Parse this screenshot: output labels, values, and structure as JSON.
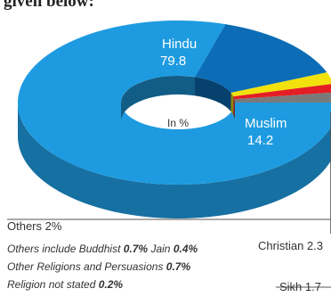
{
  "header_fragment": "given below:",
  "chart_data": {
    "type": "pie",
    "center_label": "In %",
    "slices": [
      {
        "label": "Hindu",
        "value": 79.8,
        "color": "#1E9BE0"
      },
      {
        "label": "Muslim",
        "value": 14.2,
        "color": "#0C6CB6"
      },
      {
        "label": "Christian",
        "value": 2.3,
        "color": "#F2E10C"
      },
      {
        "label": "Sikh",
        "value": 1.7,
        "color": "#E31E24"
      },
      {
        "label": "Others",
        "value": 2,
        "color": "#7A7A7A"
      }
    ],
    "labels": {
      "hindu_name": "Hindu",
      "hindu_value": "79.8",
      "muslim_name": "Muslim",
      "muslim_value": "14.2",
      "christian": "Christian 2.3",
      "sikh": "Sikh 1.7",
      "others": "Others 2%"
    },
    "notes": {
      "line1_prefix": "Others include Buddhist",
      "buddhist_value": "0.7%",
      "jain_label": "Jain",
      "jain_value": "0.4%",
      "line2_prefix": "Other Religions and Persuasions",
      "line2_value": "0.7%",
      "line3_prefix": "Religion not stated",
      "line3_value": "0.2%"
    }
  }
}
